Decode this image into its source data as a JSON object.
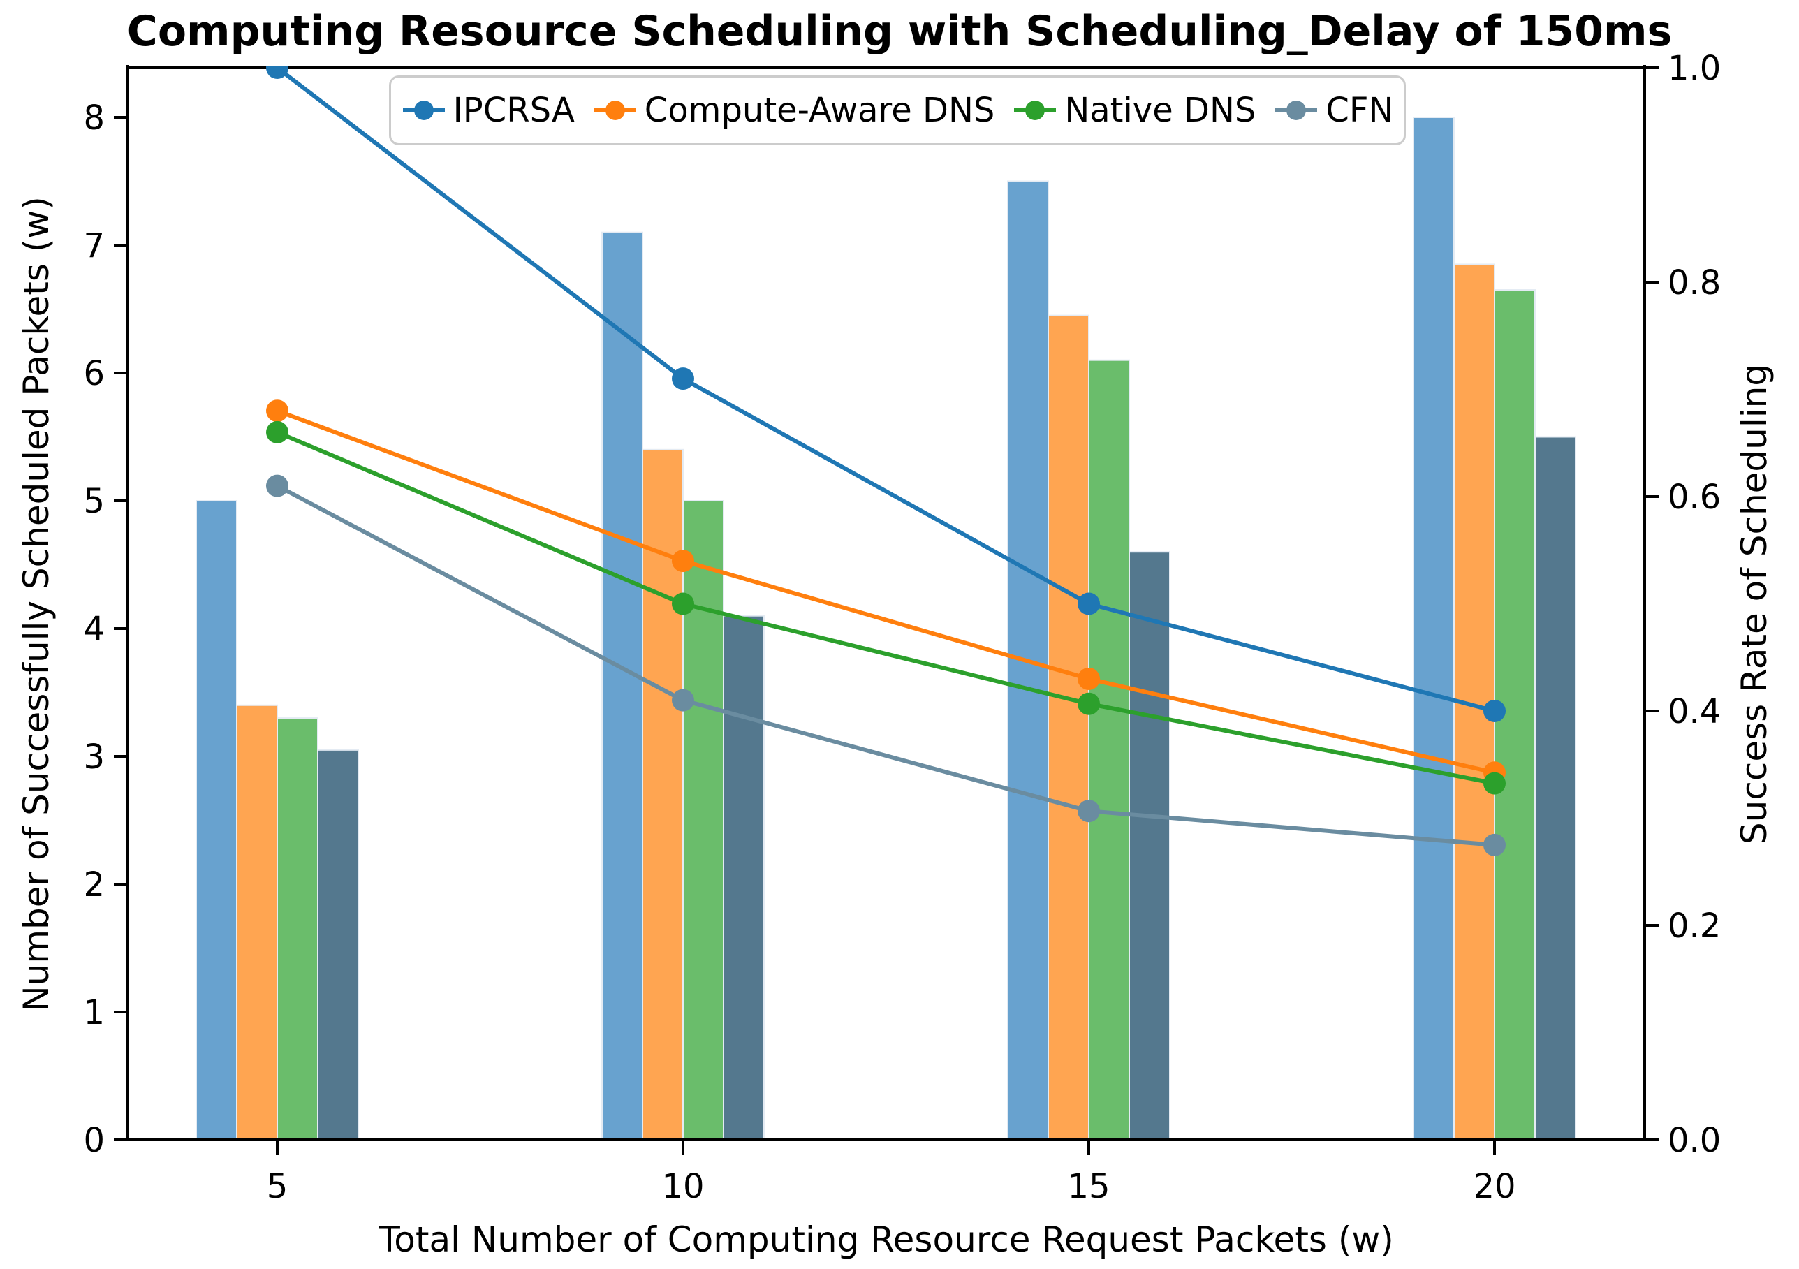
{
  "chart": {
    "title": "Computing Resource Scheduling with Scheduling_Delay of 150ms",
    "x_axis": {
      "label": "Total Number of Computing Resource Request Packets (w)",
      "ticks": [
        "5",
        "10",
        "15",
        "20"
      ]
    },
    "left_axis": {
      "label": "Number of Successfully Scheduled Packets (w)",
      "ticks": [
        "0",
        "1",
        "2",
        "3",
        "4",
        "5",
        "6",
        "7",
        "8"
      ],
      "range": [
        0,
        8.39
      ]
    },
    "right_axis": {
      "label": "Success Rate of Scheduling",
      "ticks": [
        "0.0",
        "0.2",
        "0.4",
        "0.6",
        "0.8",
        "1.0"
      ],
      "range": [
        0,
        1.0
      ]
    }
  },
  "chart_data": {
    "type": "bar",
    "subtype": "grouped bars (left axis) + lines with circle markers (right axis, dual-axis)",
    "title": "Computing Resource Scheduling with Scheduling_Delay of 150ms",
    "xlabel": "Total Number of Computing Resource Request Packets (w)",
    "ylabel_left": "Number of Successfully Scheduled Packets (w)",
    "ylabel_right": "Success Rate of Scheduling",
    "categories": [
      5,
      10,
      15,
      20
    ],
    "left_ylim": [
      0,
      8.39
    ],
    "right_ylim": [
      0,
      1.0
    ],
    "grid": false,
    "legend_position": "upper center, horizontal",
    "series": [
      {
        "name": "IPCRSA",
        "line_color": "#1f77b4",
        "bar_color": "#68a2cf",
        "bars": [
          5.0,
          7.1,
          7.5,
          8.0
        ],
        "success_rate": [
          1.0,
          0.71,
          0.5,
          0.4
        ]
      },
      {
        "name": "Compute-Aware DNS",
        "line_color": "#ff7f0e",
        "bar_color": "#ffa551",
        "bars": [
          3.4,
          5.4,
          6.45,
          6.85
        ],
        "success_rate": [
          0.68,
          0.54,
          0.43,
          0.3425
        ]
      },
      {
        "name": "Native DNS",
        "line_color": "#2ca02c",
        "bar_color": "#6abd6b",
        "bars": [
          3.3,
          5.0,
          6.1,
          6.65
        ],
        "success_rate": [
          0.66,
          0.5,
          0.4067,
          0.3325
        ]
      },
      {
        "name": "CFN",
        "line_color": "#6a8ca0",
        "bar_color": "#54788e",
        "bars": [
          3.05,
          4.1,
          4.6,
          5.5
        ],
        "success_rate": [
          0.61,
          0.41,
          0.3067,
          0.275
        ]
      }
    ]
  }
}
